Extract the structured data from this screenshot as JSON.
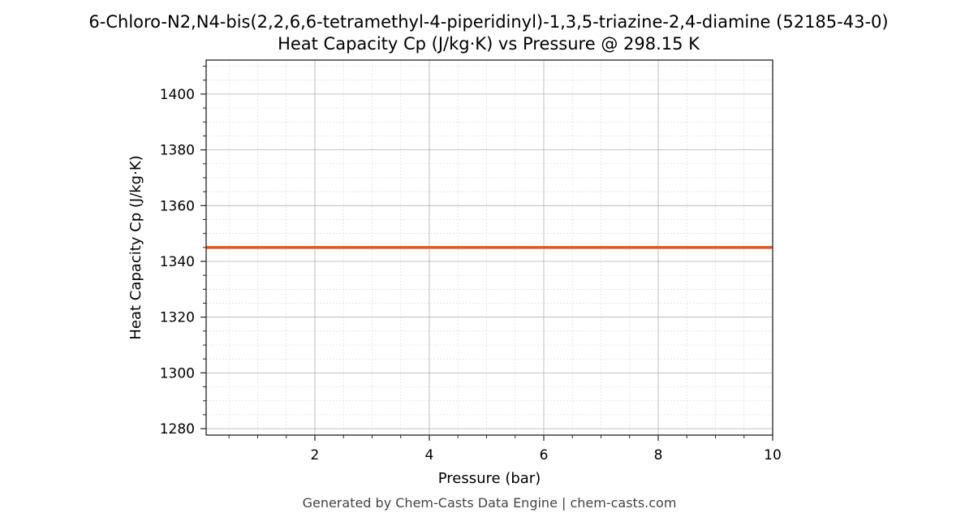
{
  "chart_data": {
    "type": "line",
    "title": "6-Chloro-N2,N4-bis(2,2,6,6-tetramethyl-4-piperidinyl)-1,3,5-triazine-2,4-diamine (52185-43-0)",
    "subtitle": "Heat Capacity Cp (J/kg·K) vs Pressure @ 298.15 K",
    "xlabel": "Pressure (bar)",
    "ylabel": "Heat Capacity Cp (J/kg·K)",
    "xlim": [
      0.1,
      10
    ],
    "ylim": [
      1277.7,
      1412.2
    ],
    "xticks": [
      2,
      4,
      6,
      8,
      10
    ],
    "yticks": [
      1280,
      1300,
      1320,
      1340,
      1360,
      1380,
      1400
    ],
    "grid": true,
    "series": [
      {
        "color": "#E0561F",
        "x": [
          0.1,
          10
        ],
        "y": [
          1345,
          1345
        ]
      }
    ]
  },
  "footer": "Generated by Chem-Casts Data Engine | chem-casts.com"
}
